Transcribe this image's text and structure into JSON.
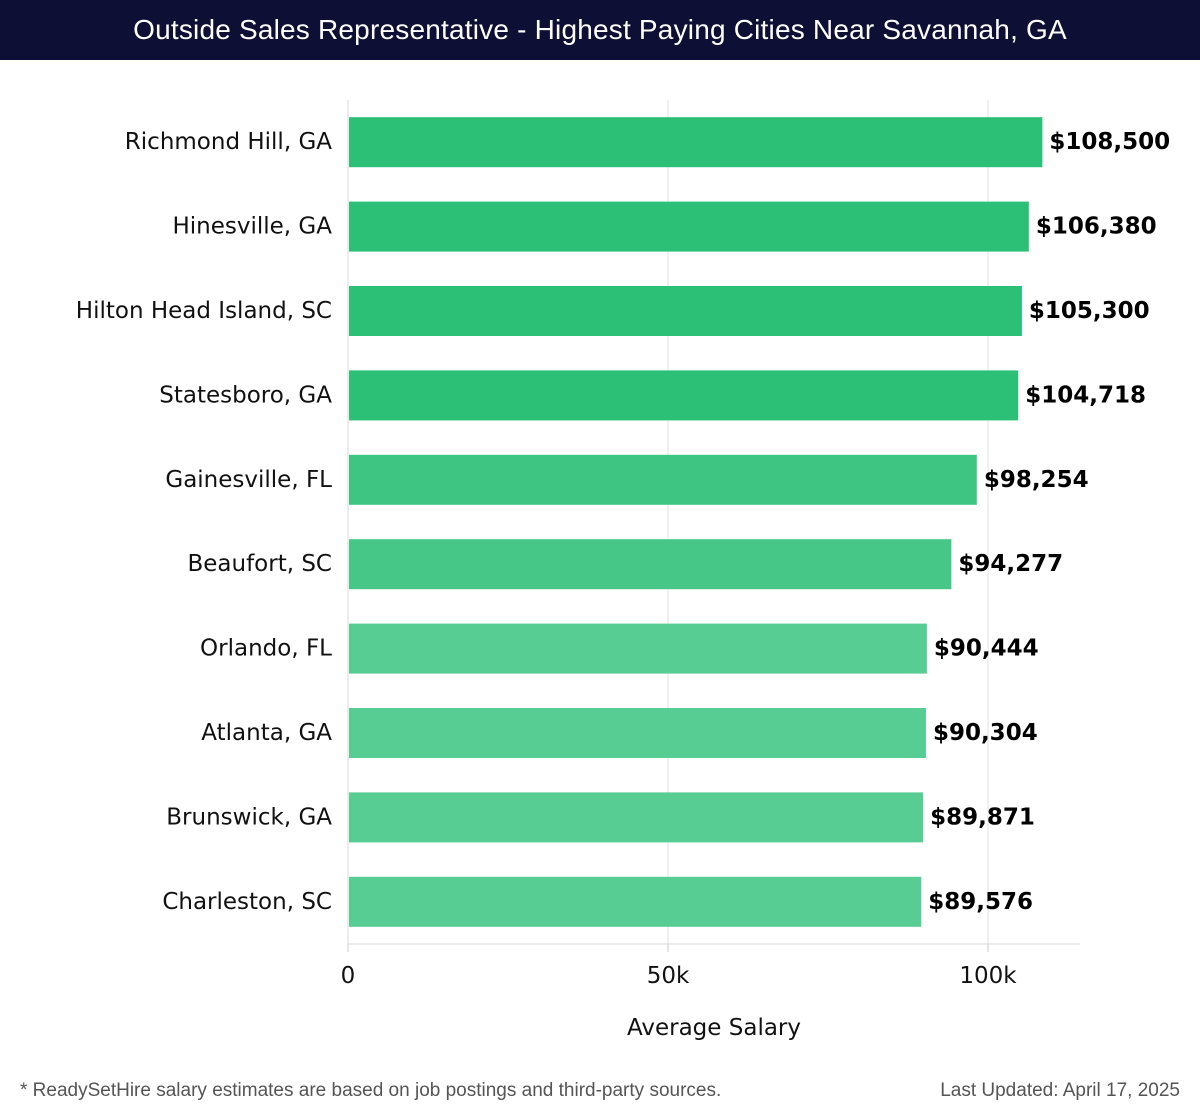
{
  "header": {
    "title": "Outside Sales Representative - Highest Paying Cities Near Savannah, GA"
  },
  "chart_data": {
    "type": "bar",
    "orientation": "horizontal",
    "title": "Outside Sales Representative - Highest Paying Cities Near Savannah, GA",
    "xlabel": "Average Salary",
    "ylabel": "",
    "xlim": [
      0,
      114000
    ],
    "x_ticks": [
      0,
      50000,
      100000
    ],
    "x_tick_labels": [
      "0",
      "50k",
      "100k"
    ],
    "grid": true,
    "categories": [
      "Richmond Hill, GA",
      "Hinesville, GA",
      "Hilton Head Island, SC",
      "Statesboro, GA",
      "Gainesville, FL",
      "Beaufort, SC",
      "Orlando, FL",
      "Atlanta, GA",
      "Brunswick, GA",
      "Charleston, SC"
    ],
    "values": [
      108500,
      106380,
      105300,
      104718,
      98254,
      94277,
      90444,
      90304,
      89871,
      89576
    ],
    "value_labels": [
      "$108,500",
      "$106,380",
      "$105,300",
      "$104,718",
      "$98,254",
      "$94,277",
      "$90,444",
      "$90,304",
      "$89,871",
      "$89,576"
    ],
    "bar_colors": [
      "#2cc077",
      "#2cc077",
      "#2cc077",
      "#2cc077",
      "#3fc582",
      "#47c787",
      "#57cc93",
      "#57cc93",
      "#57cc93",
      "#57cc93"
    ]
  },
  "footer": {
    "note": "* ReadySetHire salary estimates are based on job postings and third-party sources.",
    "updated": "Last Updated: April 17, 2025"
  }
}
